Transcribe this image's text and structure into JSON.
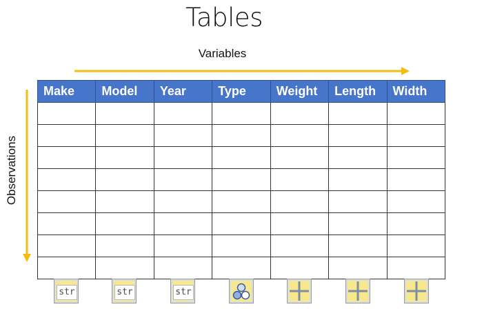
{
  "title": "Tables",
  "variables_label": "Variables",
  "observations_label": "Observations",
  "columns": [
    "Make",
    "Model",
    "Year",
    "Type",
    "Weight",
    "Length",
    "Width"
  ],
  "row_count": 8,
  "column_types": [
    {
      "icon": "string-type-icon",
      "text": "str"
    },
    {
      "icon": "string-type-icon",
      "text": "str"
    },
    {
      "icon": "string-type-icon",
      "text": "str"
    },
    {
      "icon": "categorical-type-icon",
      "text": ""
    },
    {
      "icon": "numeric-type-icon",
      "text": ""
    },
    {
      "icon": "numeric-type-icon",
      "text": ""
    },
    {
      "icon": "numeric-type-icon",
      "text": ""
    }
  ],
  "colors": {
    "header_fill": "#4775c9",
    "arrow": "#f2bd0f",
    "icon_fill": "#f7e88e"
  }
}
